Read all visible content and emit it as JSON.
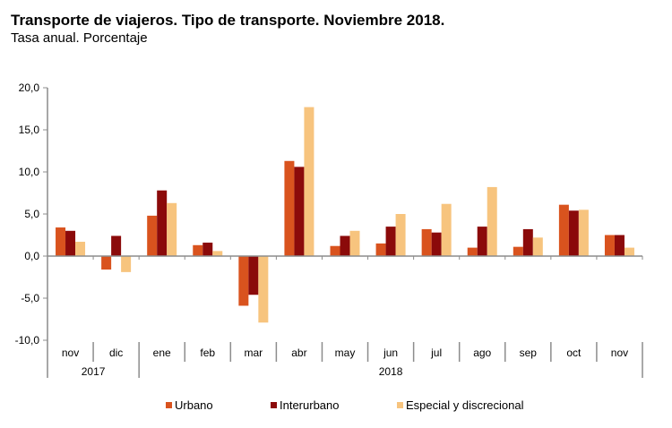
{
  "chart_data": {
    "type": "bar",
    "title": "Transporte de viajeros. Tipo de transporte. Noviembre 2018.",
    "subtitle": "Tasa anual. Porcentaje",
    "xlabel": "",
    "ylabel": "",
    "categories": [
      "nov",
      "dic",
      "ene",
      "feb",
      "mar",
      "abr",
      "may",
      "jun",
      "jul",
      "ago",
      "sep",
      "oct",
      "nov"
    ],
    "year_groups": [
      {
        "label": "2017",
        "start": 0,
        "end": 1
      },
      {
        "label": "2018",
        "start": 2,
        "end": 12
      }
    ],
    "ylim": [
      -10,
      20
    ],
    "yticks": [
      20,
      15,
      10,
      5,
      0,
      -5,
      -10
    ],
    "ytick_labels": [
      "20,0",
      "15,0",
      "10,0",
      "5,0",
      "0,0",
      "-5,0",
      "-10,0"
    ],
    "grid": false,
    "legend_position": "bottom",
    "series": [
      {
        "name": "Urbano",
        "color": "#D9531E",
        "values": [
          3.4,
          -1.6,
          4.8,
          1.3,
          -5.9,
          11.3,
          1.2,
          1.5,
          3.2,
          1.0,
          1.1,
          6.1,
          2.5
        ]
      },
      {
        "name": "Interurbano",
        "color": "#8B0A0A",
        "values": [
          3.0,
          2.4,
          7.8,
          1.6,
          -4.6,
          10.6,
          2.4,
          3.5,
          2.8,
          3.5,
          3.2,
          5.4,
          2.5
        ]
      },
      {
        "name": "Especial y discrecional",
        "color": "#F7C47E",
        "values": [
          1.7,
          -1.9,
          6.3,
          0.6,
          -7.9,
          17.7,
          3.0,
          5.0,
          6.2,
          8.2,
          2.2,
          5.5,
          1.0
        ]
      }
    ]
  }
}
